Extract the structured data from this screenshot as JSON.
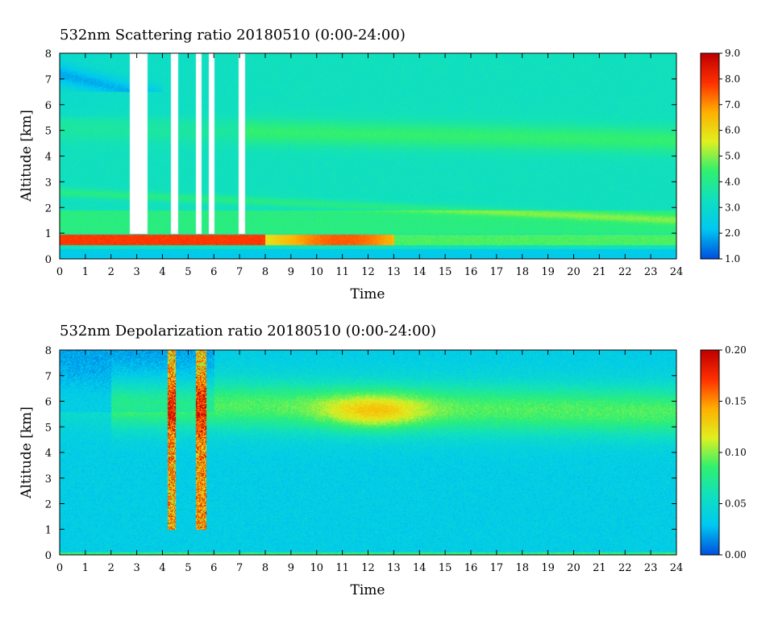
{
  "chart_data": [
    {
      "type": "heatmap",
      "title": "532nm Scattering ratio  20180510 (0:00-24:00)",
      "xlabel": "Time",
      "ylabel": "Altitude [km]",
      "xlim": [
        0,
        24
      ],
      "ylim": [
        0,
        8
      ],
      "x_ticks": [
        "0",
        "1",
        "2",
        "3",
        "4",
        "5",
        "6",
        "7",
        "8",
        "9",
        "10",
        "11",
        "12",
        "13",
        "14",
        "15",
        "16",
        "17",
        "18",
        "19",
        "20",
        "21",
        "22",
        "23",
        "24"
      ],
      "y_ticks": [
        "0",
        "1",
        "2",
        "3",
        "4",
        "5",
        "6",
        "7",
        "8"
      ],
      "colorbar": {
        "range": [
          1.0,
          9.0
        ],
        "ticks": [
          "1.0",
          "2.0",
          "3.0",
          "4.0",
          "5.0",
          "6.0",
          "7.0",
          "8.0",
          "9.0"
        ],
        "colormap": [
          "#0050e0",
          "#00c8f0",
          "#10e0c0",
          "#30f070",
          "#e0f020",
          "#ffb000",
          "#ff3000",
          "#c00000"
        ]
      },
      "features": {
        "background_level": 3.3,
        "surface_aerosol_layer": {
          "altitude_km": [
            0.5,
            1.0
          ],
          "level": 7.5
        },
        "aerosol_layer_2km": {
          "altitude_km": [
            1.0,
            2.0
          ],
          "level": 4.2
        },
        "elevated_layer_5km": {
          "altitude_km": [
            4.6,
            5.6
          ],
          "level": 4.4
        },
        "cloud_gaps": [
          [
            2.7,
            3.4
          ],
          [
            4.3,
            4.6
          ],
          [
            5.3,
            5.5
          ],
          [
            5.8,
            6.0
          ],
          [
            6.95,
            7.2
          ]
        ]
      }
    },
    {
      "type": "heatmap",
      "title": "532nm Depolarization ratio  20180510 (0:00-24:00)",
      "xlabel": "Time",
      "ylabel": "Altitude [km]",
      "xlim": [
        0,
        24
      ],
      "ylim": [
        0,
        8
      ],
      "x_ticks": [
        "0",
        "1",
        "2",
        "3",
        "4",
        "5",
        "6",
        "7",
        "8",
        "9",
        "10",
        "11",
        "12",
        "13",
        "14",
        "15",
        "16",
        "17",
        "18",
        "19",
        "20",
        "21",
        "22",
        "23",
        "24"
      ],
      "y_ticks": [
        "0",
        "1",
        "2",
        "3",
        "4",
        "5",
        "6",
        "7",
        "8"
      ],
      "colorbar": {
        "range": [
          0.0,
          0.2
        ],
        "ticks": [
          "0.00",
          "0.05",
          "0.10",
          "0.15",
          "0.20"
        ],
        "colormap": [
          "#0050e0",
          "#00c8f0",
          "#10e0c0",
          "#30f070",
          "#e0f020",
          "#ffb000",
          "#ff3000",
          "#c00000"
        ]
      },
      "features": {
        "background_level": 0.035,
        "elevated_dust_layer": {
          "altitude_km": [
            4.8,
            7.0
          ],
          "level": 0.1,
          "peak_time": 12.2,
          "peak_altitude_km": 5.6,
          "peak_level": 0.13
        },
        "cloud_columns": [
          [
            4.2,
            4.5
          ],
          [
            5.3,
            5.7
          ]
        ]
      }
    }
  ]
}
